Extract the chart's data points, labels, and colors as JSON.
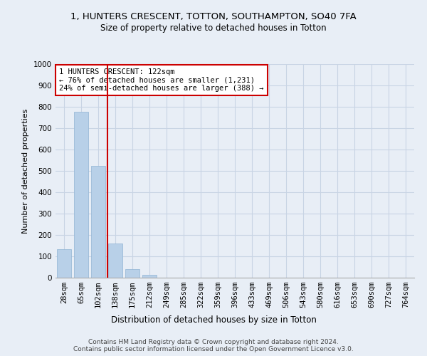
{
  "title1": "1, HUNTERS CRESCENT, TOTTON, SOUTHAMPTON, SO40 7FA",
  "title2": "Size of property relative to detached houses in Totton",
  "xlabel": "Distribution of detached houses by size in Totton",
  "ylabel": "Number of detached properties",
  "bin_labels": [
    "28sqm",
    "65sqm",
    "102sqm",
    "138sqm",
    "175sqm",
    "212sqm",
    "249sqm",
    "285sqm",
    "322sqm",
    "359sqm",
    "396sqm",
    "433sqm",
    "469sqm",
    "506sqm",
    "543sqm",
    "580sqm",
    "616sqm",
    "653sqm",
    "690sqm",
    "727sqm",
    "764sqm"
  ],
  "bar_values": [
    135,
    778,
    522,
    160,
    40,
    12,
    0,
    0,
    0,
    0,
    0,
    0,
    0,
    0,
    0,
    0,
    0,
    0,
    0,
    0,
    0
  ],
  "bar_color": "#b8d0e8",
  "bar_edge_color": "#90b4d4",
  "grid_color": "#c8d4e4",
  "background_color": "#e8eef6",
  "red_line_x": 2.54,
  "red_line_color": "#cc0000",
  "annotation_text": "1 HUNTERS CRESCENT: 122sqm\n← 76% of detached houses are smaller (1,231)\n24% of semi-detached houses are larger (388) →",
  "annotation_box_color": "#ffffff",
  "annotation_box_edge": "#cc0000",
  "ylim": [
    0,
    1000
  ],
  "yticks": [
    0,
    100,
    200,
    300,
    400,
    500,
    600,
    700,
    800,
    900,
    1000
  ],
  "footer": "Contains HM Land Registry data © Crown copyright and database right 2024.\nContains public sector information licensed under the Open Government Licence v3.0.",
  "title1_fontsize": 9.5,
  "title2_fontsize": 8.5,
  "xlabel_fontsize": 8.5,
  "ylabel_fontsize": 8,
  "tick_fontsize": 7.5,
  "annotation_fontsize": 7.5,
  "footer_fontsize": 6.5
}
